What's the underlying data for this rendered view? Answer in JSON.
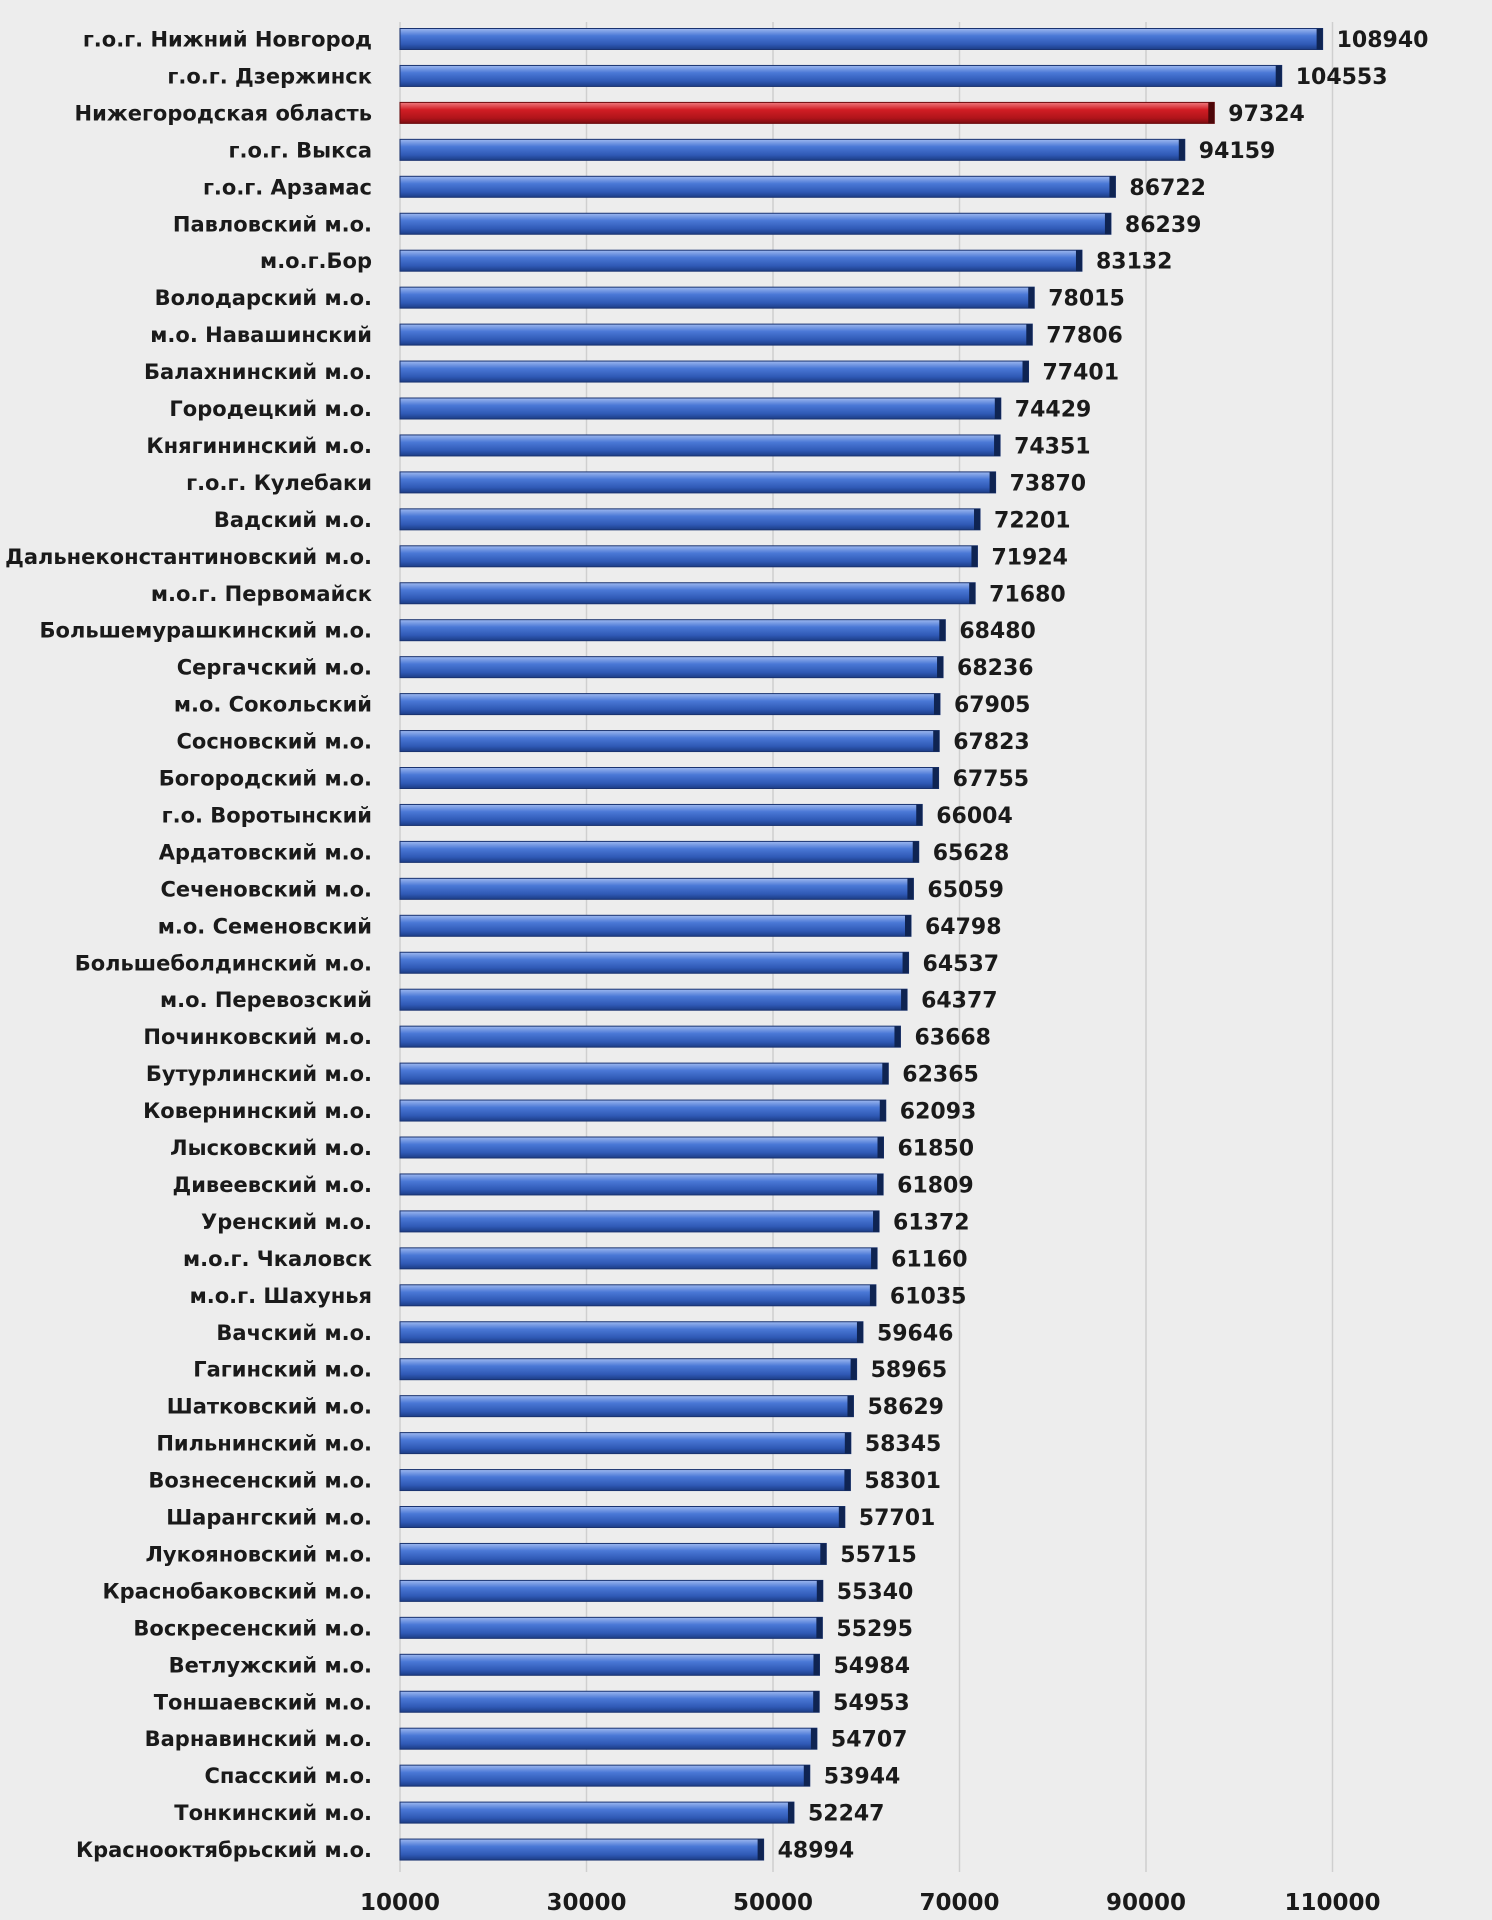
{
  "chart_data": {
    "type": "bar",
    "orientation": "horizontal",
    "title": "",
    "xlabel": "",
    "ylabel": "",
    "xlim": [
      10000,
      118000
    ],
    "x_ticks": [
      10000,
      30000,
      50000,
      70000,
      90000,
      110000
    ],
    "x_tick_labels": [
      "10000",
      "30000",
      "50000",
      "70000",
      "90000",
      "110000"
    ],
    "grid": "vertical",
    "legend": "none",
    "colors": {
      "default_bar": "#3f6fd1",
      "highlight_bar": "#c0151b",
      "background": "#ededed"
    },
    "highlight_category": "Нижегородская область",
    "categories": [
      "г.о.г. Нижний Новгород",
      "г.о.г. Дзержинск",
      "Нижегородская область",
      "г.о.г. Выкса",
      "г.о.г. Арзамас",
      "Павловский м.о.",
      "м.о.г.Бор",
      "Володарский м.о.",
      "м.о. Навашинский",
      "Балахнинский м.о.",
      "Городецкий м.о.",
      "Княгининский м.о.",
      "г.о.г. Кулебаки",
      "Вадский м.о.",
      "Дальнеконстантиновский м.о.",
      "м.о.г. Первомайск",
      "Большемурашкинский м.о.",
      "Сергачский м.о.",
      "м.о. Сокольский",
      "Сосновский м.о.",
      "Богородский м.о.",
      "г.о. Воротынский",
      "Ардатовский м.о.",
      "Сеченовский м.о.",
      "м.о. Семеновский",
      "Большеболдинский м.о.",
      "м.о. Перевозский",
      "Починковский м.о.",
      "Бутурлинский м.о.",
      "Ковернинский м.о.",
      "Лысковский м.о.",
      "Дивеевский м.о.",
      "Уренский м.о.",
      "м.о.г. Чкаловск",
      "м.о.г. Шахунья",
      "Вачский м.о.",
      "Гагинский м.о.",
      "Шатковский м.о.",
      "Пильнинский м.о.",
      "Вознесенский м.о.",
      "Шарангский м.о.",
      "Лукояновский м.о.",
      "Краснобаковский м.о.",
      "Воскресенский м.о.",
      "Ветлужский м.о.",
      "Тоншаевский м.о.",
      "Варнавинский м.о.",
      "Спасский м.о.",
      "Тонкинский м.о.",
      "Краснооктябрьский м.о."
    ],
    "values": [
      108940,
      104553,
      97324,
      94159,
      86722,
      86239,
      83132,
      78015,
      77806,
      77401,
      74429,
      74351,
      73870,
      72201,
      71924,
      71680,
      68480,
      68236,
      67905,
      67823,
      67755,
      66004,
      65628,
      65059,
      64798,
      64537,
      64377,
      63668,
      62365,
      62093,
      61850,
      61809,
      61372,
      61160,
      61035,
      59646,
      58965,
      58629,
      58345,
      58301,
      57701,
      55715,
      55340,
      55295,
      54984,
      54953,
      54707,
      53944,
      52247,
      48994
    ],
    "value_labels": [
      "108940",
      "104553",
      "97324",
      "94159",
      "86722",
      "86239",
      "83132",
      "78015",
      "77806",
      "77401",
      "74429",
      "74351",
      "73870",
      "72201",
      "71924",
      "71680",
      "68480",
      "68236",
      "67905",
      "67823",
      "67755",
      "66004",
      "65628",
      "65059",
      "64798",
      "64537",
      "64377",
      "63668",
      "62365",
      "62093",
      "61850",
      "61809",
      "61372",
      "61160",
      "61035",
      "59646",
      "58965",
      "58629",
      "58345",
      "58301",
      "57701",
      "55715",
      "55340",
      "55295",
      "54984",
      "54953",
      "54707",
      "53944",
      "52247",
      "48994"
    ]
  }
}
